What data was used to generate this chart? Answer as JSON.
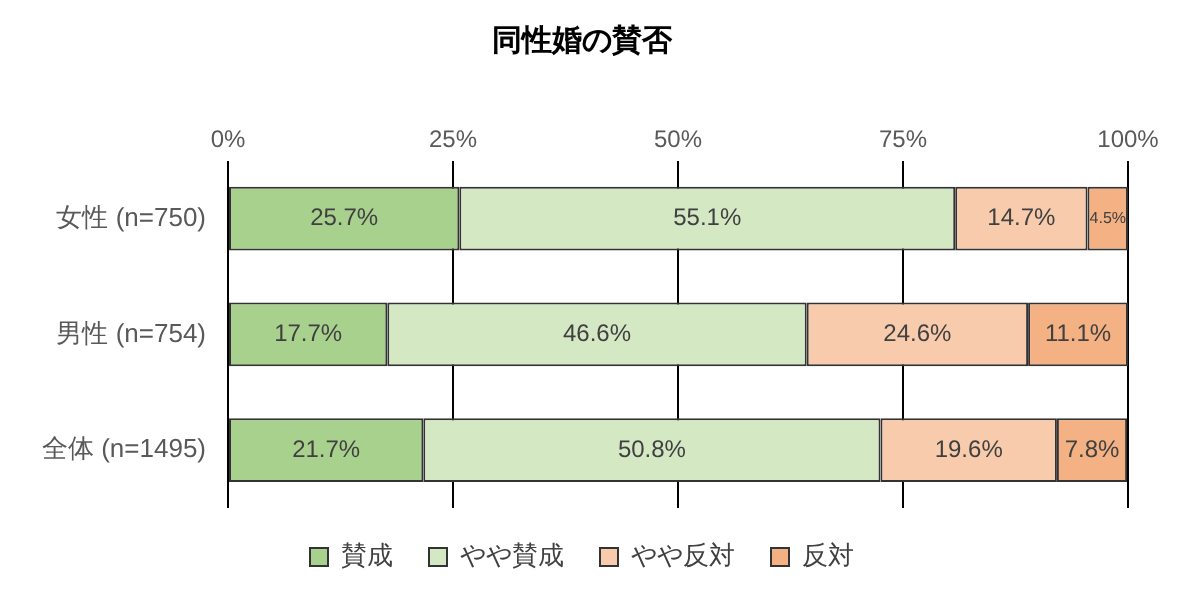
{
  "chart_data": {
    "type": "bar",
    "orientation": "horizontal",
    "stacked": true,
    "title": "同性婚の賛否",
    "categories": [
      "女性 (n=750)",
      "男性 (n=754)",
      "全体 (n=1495)"
    ],
    "series": [
      {
        "name": "賛成",
        "color": "#a9d18e",
        "values": [
          25.7,
          17.7,
          21.7
        ],
        "value_labels": [
          "25.7%",
          "17.7%",
          "21.7%"
        ]
      },
      {
        "name": "やや賛成",
        "color": "#d5e8c4",
        "values": [
          55.1,
          46.6,
          50.8
        ],
        "value_labels": [
          "55.1%",
          "46.6%",
          "50.8%"
        ]
      },
      {
        "name": "やや反対",
        "color": "#f8cbad",
        "values": [
          14.7,
          24.6,
          19.6
        ],
        "value_labels": [
          "14.7%",
          "24.6%",
          "19.6%"
        ]
      },
      {
        "name": "反対",
        "color": "#f4b183",
        "values": [
          4.5,
          11.1,
          7.8
        ],
        "value_labels": [
          "4.5%",
          "11.1%",
          "7.8%"
        ]
      }
    ],
    "xlim": [
      0,
      100
    ],
    "xticks": [
      {
        "value": 0,
        "label": "0%"
      },
      {
        "value": 25,
        "label": "25%"
      },
      {
        "value": 50,
        "label": "50%"
      },
      {
        "value": 75,
        "label": "75%"
      },
      {
        "value": 100,
        "label": "100%"
      }
    ],
    "grid": "x",
    "legend": "bottom"
  }
}
